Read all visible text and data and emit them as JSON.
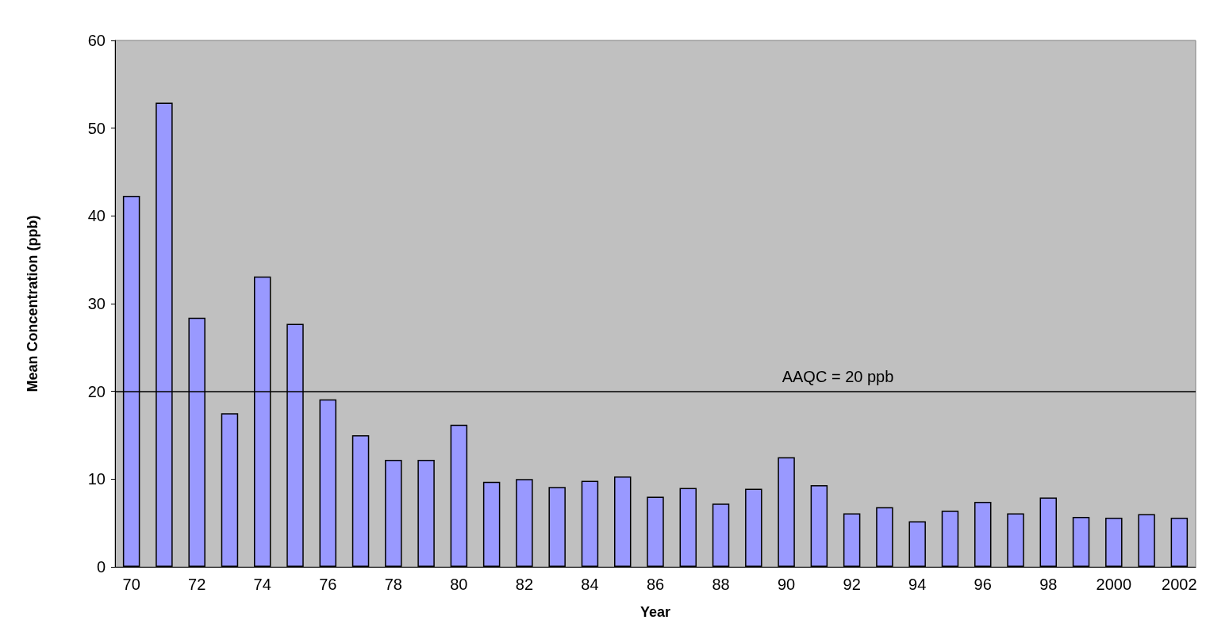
{
  "chart_data": {
    "type": "bar",
    "xlabel": "Year",
    "ylabel": "Mean Concentration (ppb)",
    "categories": [
      "70",
      null,
      "72",
      null,
      "74",
      null,
      "76",
      null,
      "78",
      null,
      "80",
      null,
      "82",
      null,
      "84",
      null,
      "86",
      null,
      "88",
      null,
      "90",
      null,
      "92",
      null,
      "94",
      null,
      "96",
      null,
      "98",
      null,
      "2000",
      null,
      "2002"
    ],
    "values": [
      42.3,
      52.9,
      28.4,
      17.5,
      33.1,
      27.7,
      19.1,
      15.0,
      12.2,
      12.2,
      16.2,
      9.7,
      10.0,
      9.1,
      9.8,
      10.3,
      8.0,
      9.0,
      7.2,
      8.9,
      12.5,
      9.3,
      6.1,
      6.8,
      5.2,
      6.4,
      7.4,
      6.1,
      7.9,
      5.7,
      5.6,
      6.0,
      5.6
    ],
    "color": "#9999ff",
    "ylim": [
      0,
      60
    ],
    "yticks": [
      0,
      10,
      20,
      30,
      40,
      50,
      60
    ],
    "grid": false,
    "ref_lines": [
      {
        "axis": "y",
        "value": 20,
        "label": "AAQC = 20 ppb",
        "color": "#000000"
      }
    ]
  }
}
